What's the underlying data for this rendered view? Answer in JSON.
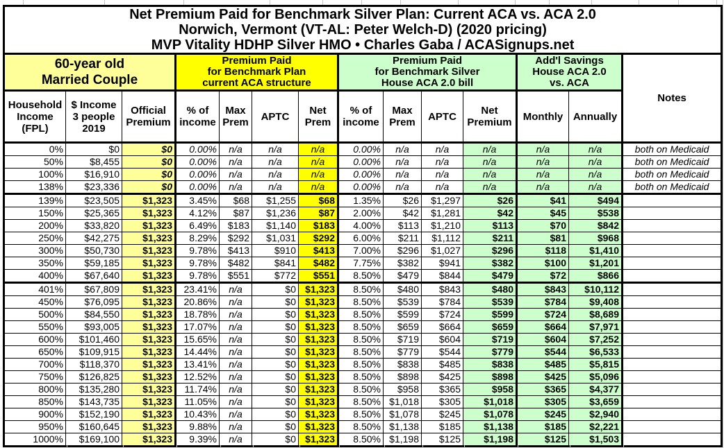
{
  "title": {
    "line1": "Net Premium Paid for Benchmark Silver Plan: Current ACA vs. ACA 2.0",
    "line2": "Norwich, Vermont (VT-AL: Peter Welch-D) (2020 pricing)",
    "line3": "MVP Vitality HDHP Silver HMO • Charles Gaba / ACASignups.net"
  },
  "colors": {
    "light_yellow": "#FFFF99",
    "yellow": "#FFFF00",
    "light_green": "#CCFFCC",
    "border_black": "#000000"
  },
  "header": {
    "groups": {
      "demographic": "60-year old\nMarried Couple",
      "current_aca": "Premium Paid\nfor Benchmark Plan\ncurrent ACA structure",
      "aca20": "Premium Paid\nfor Benchmark Silver\nHouse ACA 2.0 bill",
      "savings": "Add'l Savings\nHouse ACA 2.0\nvs. ACA"
    },
    "columns": [
      "Household\nIncome\n(FPL)",
      "$ Income\n3 people\n2019",
      "Official\nPremium",
      "% of\nincome",
      "Max\nPrem",
      "APTC",
      "Net\nPrem",
      "% of\nincome",
      "Max\nPrem",
      "APTC",
      "Net\nPremium",
      "Monthly",
      "Annually"
    ],
    "notes": "Notes"
  },
  "rows": [
    {
      "band": "medicaid",
      "cells": [
        "0%",
        "$0",
        "$0",
        "0.00%",
        "n/a",
        "n/a",
        "n/a",
        "0.00%",
        "n/a",
        "n/a",
        "n/a",
        "n/a",
        "n/a",
        "both on Medicaid"
      ]
    },
    {
      "band": "medicaid",
      "cells": [
        "50%",
        "$8,455",
        "$0",
        "0.00%",
        "n/a",
        "n/a",
        "n/a",
        "0.00%",
        "n/a",
        "n/a",
        "n/a",
        "n/a",
        "n/a",
        "both on Medicaid"
      ]
    },
    {
      "band": "medicaid",
      "cells": [
        "100%",
        "$16,910",
        "$0",
        "0.00%",
        "n/a",
        "n/a",
        "n/a",
        "0.00%",
        "n/a",
        "n/a",
        "n/a",
        "n/a",
        "n/a",
        "both on Medicaid"
      ]
    },
    {
      "band": "medicaid",
      "cells": [
        "138%",
        "$23,336",
        "$0",
        "0.00%",
        "n/a",
        "n/a",
        "n/a",
        "0.00%",
        "n/a",
        "n/a",
        "n/a",
        "n/a",
        "n/a",
        "both on Medicaid"
      ]
    },
    {
      "band": "subsidized",
      "cells": [
        "139%",
        "$23,505",
        "$1,323",
        "3.45%",
        "$68",
        "$1,255",
        "$68",
        "1.35%",
        "$26",
        "$1,297",
        "$26",
        "$41",
        "$494",
        ""
      ]
    },
    {
      "band": "subsidized",
      "cells": [
        "150%",
        "$25,365",
        "$1,323",
        "4.12%",
        "$87",
        "$1,236",
        "$87",
        "2.00%",
        "$42",
        "$1,281",
        "$42",
        "$45",
        "$538",
        ""
      ]
    },
    {
      "band": "subsidized",
      "cells": [
        "200%",
        "$33,820",
        "$1,323",
        "6.49%",
        "$183",
        "$1,140",
        "$183",
        "4.00%",
        "$113",
        "$1,210",
        "$113",
        "$70",
        "$842",
        ""
      ]
    },
    {
      "band": "subsidized",
      "cells": [
        "250%",
        "$42,275",
        "$1,323",
        "8.29%",
        "$292",
        "$1,031",
        "$292",
        "6.00%",
        "$211",
        "$1,112",
        "$211",
        "$81",
        "$968",
        ""
      ]
    },
    {
      "band": "subsidized",
      "cells": [
        "300%",
        "$50,730",
        "$1,323",
        "9.78%",
        "$413",
        "$910",
        "$413",
        "7.00%",
        "$296",
        "$1,027",
        "$296",
        "$118",
        "$1,410",
        ""
      ]
    },
    {
      "band": "subsidized",
      "cells": [
        "350%",
        "$59,185",
        "$1,323",
        "9.78%",
        "$482",
        "$841",
        "$482",
        "7.75%",
        "$382",
        "$941",
        "$382",
        "$100",
        "$1,201",
        ""
      ]
    },
    {
      "band": "subsidized",
      "cells": [
        "400%",
        "$67,640",
        "$1,323",
        "9.78%",
        "$551",
        "$772",
        "$551",
        "8.50%",
        "$479",
        "$844",
        "$479",
        "$72",
        "$866",
        ""
      ]
    },
    {
      "band": "over400",
      "cells": [
        "401%",
        "$67,809",
        "$1,323",
        "23.41%",
        "n/a",
        "$0",
        "$1,323",
        "8.50%",
        "$480",
        "$843",
        "$480",
        "$843",
        "$10,112",
        ""
      ]
    },
    {
      "band": "over400",
      "cells": [
        "450%",
        "$76,095",
        "$1,323",
        "20.86%",
        "n/a",
        "$0",
        "$1,323",
        "8.50%",
        "$539",
        "$784",
        "$539",
        "$784",
        "$9,408",
        ""
      ]
    },
    {
      "band": "over400",
      "cells": [
        "500%",
        "$84,550",
        "$1,323",
        "18.78%",
        "n/a",
        "$0",
        "$1,323",
        "8.50%",
        "$599",
        "$724",
        "$599",
        "$724",
        "$8,689",
        ""
      ]
    },
    {
      "band": "over400",
      "cells": [
        "550%",
        "$93,005",
        "$1,323",
        "17.07%",
        "n/a",
        "$0",
        "$1,323",
        "8.50%",
        "$659",
        "$664",
        "$659",
        "$664",
        "$7,971",
        ""
      ]
    },
    {
      "band": "over400",
      "cells": [
        "600%",
        "$101,460",
        "$1,323",
        "15.65%",
        "n/a",
        "$0",
        "$1,323",
        "8.50%",
        "$719",
        "$604",
        "$719",
        "$604",
        "$7,252",
        ""
      ]
    },
    {
      "band": "over400",
      "cells": [
        "650%",
        "$109,915",
        "$1,323",
        "14.44%",
        "n/a",
        "$0",
        "$1,323",
        "8.50%",
        "$779",
        "$544",
        "$779",
        "$544",
        "$6,533",
        ""
      ]
    },
    {
      "band": "over400",
      "cells": [
        "700%",
        "$118,370",
        "$1,323",
        "13.41%",
        "n/a",
        "$0",
        "$1,323",
        "8.50%",
        "$838",
        "$485",
        "$838",
        "$485",
        "$5,815",
        ""
      ]
    },
    {
      "band": "over400",
      "cells": [
        "750%",
        "$126,825",
        "$1,323",
        "12.52%",
        "n/a",
        "$0",
        "$1,323",
        "8.50%",
        "$898",
        "$425",
        "$898",
        "$425",
        "$5,096",
        ""
      ]
    },
    {
      "band": "over400",
      "cells": [
        "800%",
        "$135,280",
        "$1,323",
        "11.74%",
        "n/a",
        "$0",
        "$1,323",
        "8.50%",
        "$958",
        "$365",
        "$958",
        "$365",
        "$4,377",
        ""
      ]
    },
    {
      "band": "over400",
      "cells": [
        "850%",
        "$143,735",
        "$1,323",
        "11.05%",
        "n/a",
        "$0",
        "$1,323",
        "8.50%",
        "$1,018",
        "$305",
        "$1,018",
        "$305",
        "$3,659",
        ""
      ]
    },
    {
      "band": "over400",
      "cells": [
        "900%",
        "$152,190",
        "$1,323",
        "10.43%",
        "n/a",
        "$0",
        "$1,323",
        "8.50%",
        "$1,078",
        "$245",
        "$1,078",
        "$245",
        "$2,940",
        ""
      ]
    },
    {
      "band": "over400",
      "cells": [
        "950%",
        "$160,645",
        "$1,323",
        "9.88%",
        "n/a",
        "$0",
        "$1,323",
        "8.50%",
        "$1,138",
        "$185",
        "$1,138",
        "$185",
        "$2,221",
        ""
      ]
    },
    {
      "band": "over400",
      "cells": [
        "1000%",
        "$169,100",
        "$1,323",
        "9.39%",
        "n/a",
        "$0",
        "$1,323",
        "8.50%",
        "$1,198",
        "$125",
        "$1,198",
        "$125",
        "$1,503",
        ""
      ]
    }
  ]
}
